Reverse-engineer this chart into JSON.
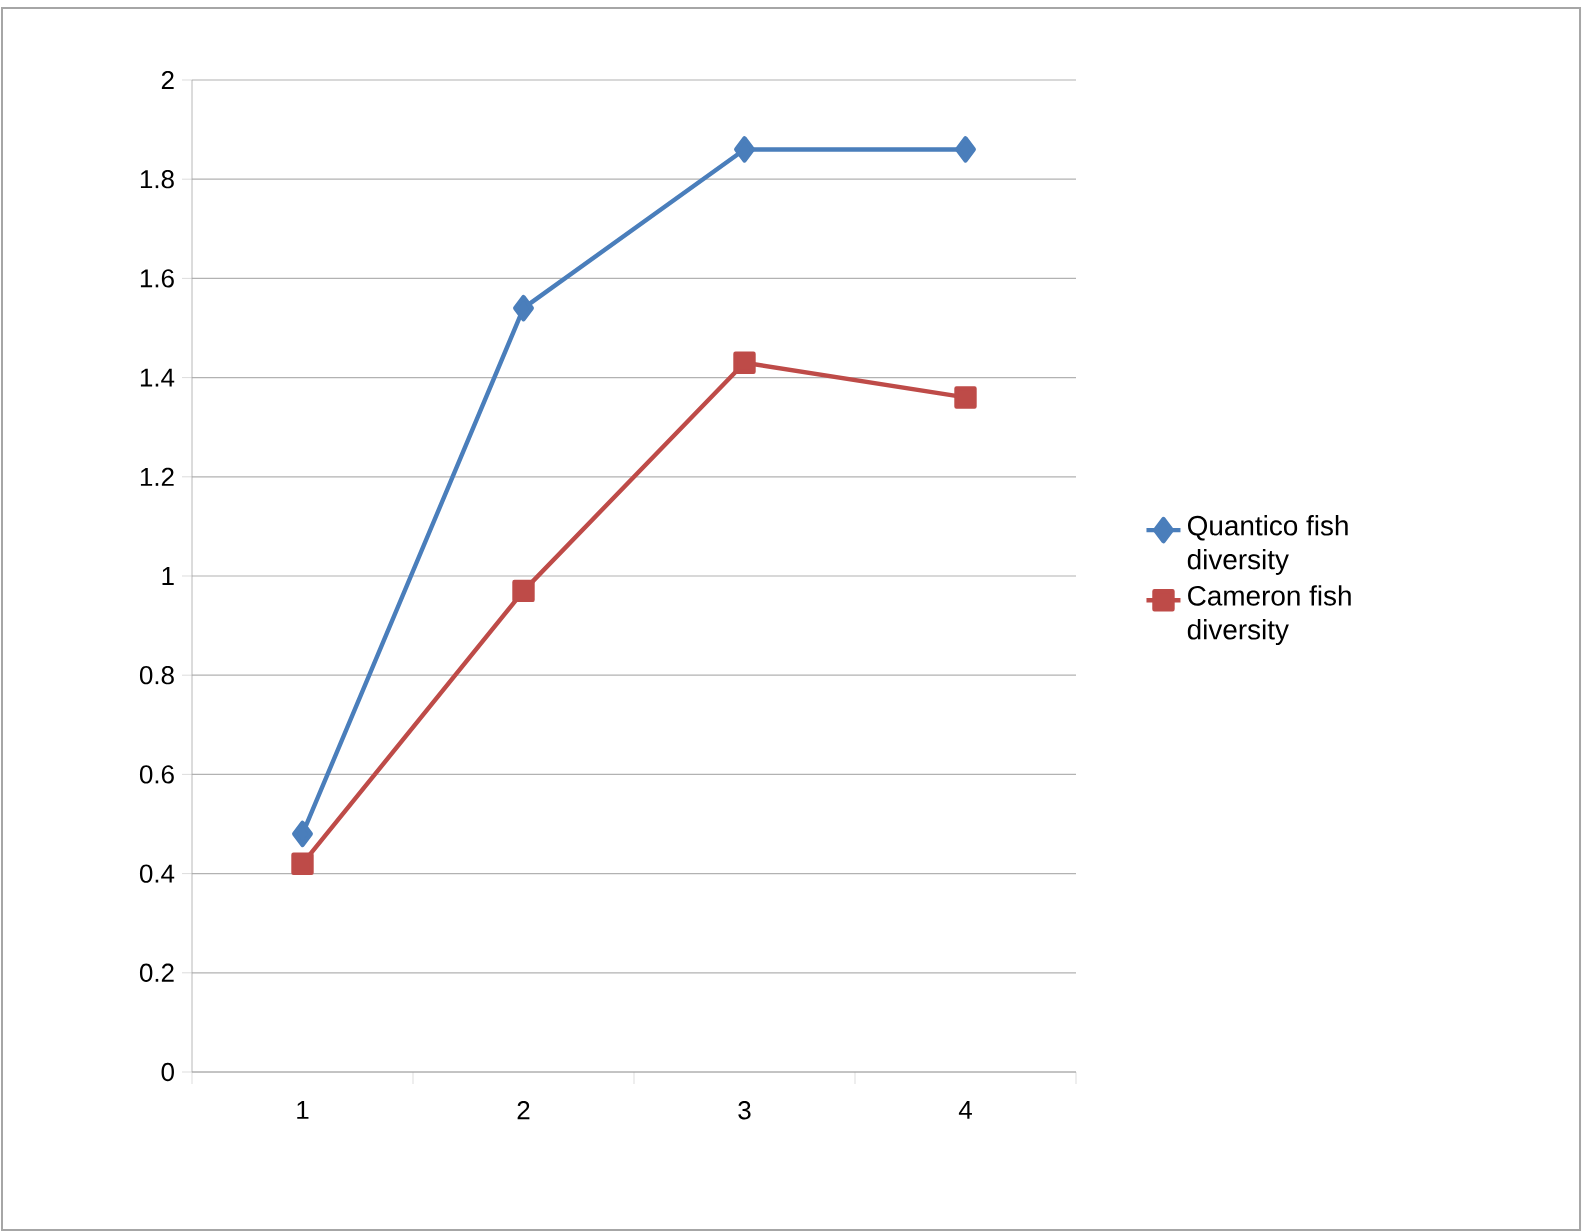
{
  "chart_data": {
    "type": "line",
    "categories": [
      "1",
      "2",
      "3",
      "4"
    ],
    "series": [
      {
        "name": "Quantico fish diversity",
        "color": "#4a7ebb",
        "marker": "diamond",
        "values": [
          0.48,
          1.54,
          1.86,
          1.86
        ]
      },
      {
        "name": "Cameron fish diversity",
        "color": "#be4b48",
        "marker": "square",
        "values": [
          0.42,
          0.97,
          1.43,
          1.36
        ]
      }
    ],
    "ylim": [
      0,
      2
    ],
    "yticks": [
      0,
      0.2,
      0.4,
      0.6,
      0.8,
      1,
      1.2,
      1.4,
      1.6,
      1.8,
      2
    ],
    "grid": "y",
    "legend": "right",
    "line_style": "solid"
  }
}
